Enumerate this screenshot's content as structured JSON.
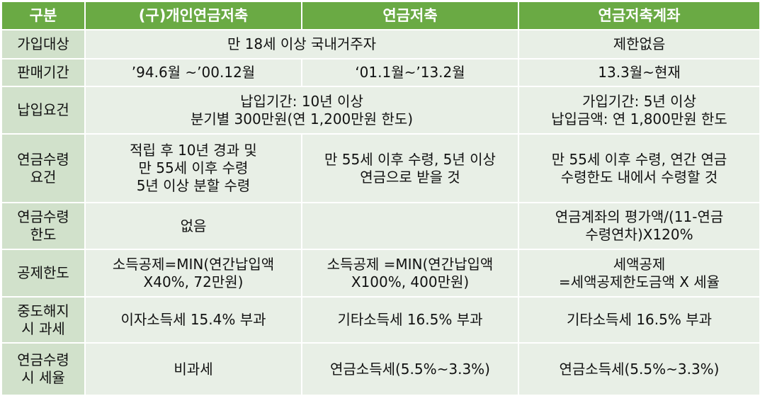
{
  "headers": [
    "구분",
    "(구)개인연금저축",
    "연금저축",
    "연금저축계좌"
  ],
  "rows": [
    {
      "label": [
        "가입대상"
      ],
      "merged": [
        "만 18세 이상 국내거주자"
      ],
      "account": [
        "제한없음"
      ]
    },
    {
      "label": [
        "판매기간"
      ],
      "old": [
        "’94.6월 ~’00.12월"
      ],
      "savings": [
        "‘01.1월~’13.2월"
      ],
      "account": [
        "13.3월~현재"
      ]
    },
    {
      "label": [
        "납입요건"
      ],
      "merged": [
        "납입기간: 10년 이상",
        "분기별 300만원(연 1,200만원 한도)"
      ],
      "account": [
        "가입기간: 5년 이상",
        "납입금액: 연 1,800만원 한도"
      ]
    },
    {
      "label": [
        "연금수령",
        "요건"
      ],
      "old": [
        "적립 후 10년 경과 및",
        "만 55세 이후 수령",
        "5년 이상 분할 수령"
      ],
      "savings": [
        "만 55세 이후 수령, 5년 이상",
        "연금으로 받을 것"
      ],
      "account": [
        "만 55세 이후 수령, 연간 연금",
        "수령한도 내에서 수령할 것"
      ]
    },
    {
      "label": [
        "연금수령",
        "한도"
      ],
      "old": [
        "없음"
      ],
      "savings": [],
      "account": [
        "연금계좌의 평가액/(11-연금",
        "수령연차)X120%"
      ]
    },
    {
      "label": [
        "공제한도"
      ],
      "old": [
        "소득공제=MIN(연간납입액",
        "X40%, 72만원)"
      ],
      "savings": [
        "소득공제 =MIN(연간납입액",
        "X100%, 400만원)"
      ],
      "account": [
        "세액공제",
        "=세액공제한도금액 X 세율"
      ]
    },
    {
      "label": [
        "중도해지",
        "시 과세"
      ],
      "old": [
        "이자소득세 15.4% 부과"
      ],
      "savings": [
        "기타소득세 16.5% 부과"
      ],
      "account": [
        "기타소득세 16.5% 부과"
      ]
    },
    {
      "label": [
        "연금수령",
        "시 세율"
      ],
      "old": [
        "비과세"
      ],
      "savings": [
        "연금소득세(5.5%~3.3%)"
      ],
      "account": [
        "연금소득세(5.5%~3.3%)"
      ]
    }
  ]
}
